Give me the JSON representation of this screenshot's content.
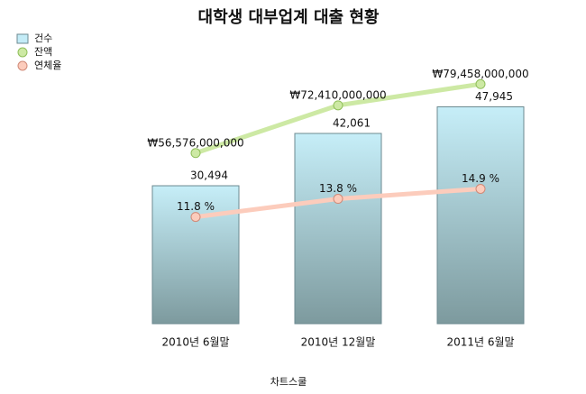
{
  "chart_data": {
    "type": "bar",
    "title": "대학생 대부업계 대출 현황",
    "source": "차트스쿨",
    "categories": [
      "2010년 6월말",
      "2010년 12월말",
      "2011년 6월말"
    ],
    "legend": "top-left",
    "ylim": [
      0,
      60000
    ],
    "y2lim": [
      0,
      90000000000
    ],
    "y3lim": [
      0,
      30
    ],
    "series": [
      {
        "name": "건수",
        "type": "bar",
        "color": "#c4ecf7",
        "values": [
          30494,
          42061,
          47945
        ],
        "value_labels": [
          "30,494",
          "42,061",
          "47,945"
        ]
      },
      {
        "name": "잔액",
        "type": "line",
        "axis": "y2",
        "color": "#cde9a4",
        "values": [
          56576000000,
          72410000000,
          79458000000
        ],
        "value_labels": [
          "₩56,576,000,000",
          "₩72,410,000,000",
          "₩79,458,000,000"
        ]
      },
      {
        "name": "연체율",
        "type": "line",
        "axis": "y3",
        "color": "#fcccbc",
        "values": [
          11.8,
          13.8,
          14.9
        ],
        "value_labels": [
          "11.8 %",
          "13.8 %",
          "14.9 %"
        ]
      }
    ]
  }
}
